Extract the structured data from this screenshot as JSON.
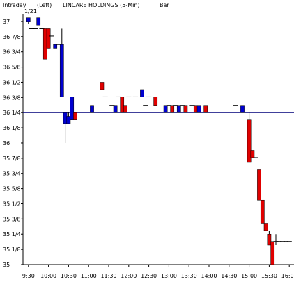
{
  "header": {
    "interval": "Intraday",
    "side": "(Left)",
    "title": "LINCARE HOLDINGS  (5-Min)",
    "style": "Bar",
    "date_label": "1/21"
  },
  "colors": {
    "up": "#e00000",
    "down": "#0000d0",
    "reference_line": "#00007a",
    "frame": "#000000",
    "background": "#ffffff"
  },
  "chart_data": {
    "type": "bar",
    "title": "LINCARE HOLDINGS  (5-Min)",
    "ylim": [
      35,
      37.0625
    ],
    "y_ticks": [
      {
        "value": 37,
        "label": "37"
      },
      {
        "value": 36.875,
        "label": "36 7/8"
      },
      {
        "value": 36.75,
        "label": "36 3/4"
      },
      {
        "value": 36.625,
        "label": "36 5/8"
      },
      {
        "value": 36.5,
        "label": "36 1/2"
      },
      {
        "value": 36.375,
        "label": "36 3/8"
      },
      {
        "value": 36.25,
        "label": "36 1/4"
      },
      {
        "value": 36.125,
        "label": "36 1/8"
      },
      {
        "value": 36,
        "label": "36"
      },
      {
        "value": 35.875,
        "label": "35 7/8"
      },
      {
        "value": 35.75,
        "label": "35 3/4"
      },
      {
        "value": 35.625,
        "label": "35 5/8"
      },
      {
        "value": 35.5,
        "label": "35 1/2"
      },
      {
        "value": 35.375,
        "label": "35 3/8"
      },
      {
        "value": 35.25,
        "label": "35 1/4"
      },
      {
        "value": 35.125,
        "label": "35 1/8"
      },
      {
        "value": 35,
        "label": "35"
      }
    ],
    "x_ticks": [
      {
        "t": 570,
        "label": "9:30"
      },
      {
        "t": 600,
        "label": "10:00"
      },
      {
        "t": 630,
        "label": "10:30"
      },
      {
        "t": 660,
        "label": "11:00"
      },
      {
        "t": 690,
        "label": "11:30"
      },
      {
        "t": 720,
        "label": "12:00"
      },
      {
        "t": 750,
        "label": "12:30"
      },
      {
        "t": 780,
        "label": "13:00"
      },
      {
        "t": 810,
        "label": "13:30"
      },
      {
        "t": 840,
        "label": "14:00"
      },
      {
        "t": 870,
        "label": "14:30"
      },
      {
        "t": 900,
        "label": "15:00"
      },
      {
        "t": 930,
        "label": "15:30"
      },
      {
        "t": 960,
        "label": "16:00"
      }
    ],
    "reference_line": 36.25,
    "bars": [
      {
        "t": 570,
        "open": 37.0,
        "high": 37.03,
        "low": 36.98,
        "close": 37.03
      },
      {
        "t": 575,
        "open": 36.94,
        "high": 36.94,
        "low": 36.94,
        "close": 36.94
      },
      {
        "t": 580,
        "open": 36.94,
        "high": 36.94,
        "low": 36.94,
        "close": 36.94
      },
      {
        "t": 585,
        "open": 36.97,
        "high": 37.03,
        "low": 36.97,
        "close": 37.03
      },
      {
        "t": 590,
        "open": 36.94,
        "high": 36.94,
        "low": 36.94,
        "close": 36.94
      },
      {
        "t": 595,
        "open": 36.94,
        "high": 36.94,
        "low": 36.69,
        "close": 36.69
      },
      {
        "t": 600,
        "open": 36.94,
        "high": 36.94,
        "low": 36.78,
        "close": 36.78
      },
      {
        "t": 605,
        "open": 36.88,
        "high": 36.88,
        "low": 36.88,
        "close": 36.88
      },
      {
        "t": 610,
        "open": 36.78,
        "high": 36.81,
        "low": 36.78,
        "close": 36.81
      },
      {
        "t": 615,
        "open": 36.81,
        "high": 36.81,
        "low": 36.81,
        "close": 36.81
      },
      {
        "t": 620,
        "open": 36.38,
        "high": 36.94,
        "low": 36.38,
        "close": 36.81
      },
      {
        "t": 625,
        "open": 36.16,
        "high": 36.25,
        "low": 36.0,
        "close": 36.25
      },
      {
        "t": 630,
        "open": 36.16,
        "high": 36.25,
        "low": 36.16,
        "close": 36.22
      },
      {
        "t": 635,
        "open": 36.19,
        "high": 36.38,
        "low": 36.19,
        "close": 36.38
      },
      {
        "t": 640,
        "open": 36.25,
        "high": 36.25,
        "low": 36.19,
        "close": 36.19
      },
      {
        "t": 665,
        "open": 36.25,
        "high": 36.31,
        "low": 36.25,
        "close": 36.31
      },
      {
        "t": 680,
        "open": 36.5,
        "high": 36.5,
        "low": 36.44,
        "close": 36.44
      },
      {
        "t": 685,
        "open": 36.38,
        "high": 36.38,
        "low": 36.38,
        "close": 36.38
      },
      {
        "t": 695,
        "open": 36.31,
        "high": 36.31,
        "low": 36.31,
        "close": 36.31
      },
      {
        "t": 700,
        "open": 36.25,
        "high": 36.31,
        "low": 36.25,
        "close": 36.31
      },
      {
        "t": 705,
        "open": 36.38,
        "high": 36.38,
        "low": 36.38,
        "close": 36.38
      },
      {
        "t": 710,
        "open": 36.38,
        "high": 36.38,
        "low": 36.25,
        "close": 36.25
      },
      {
        "t": 715,
        "open": 36.31,
        "high": 36.31,
        "low": 36.25,
        "close": 36.25
      },
      {
        "t": 720,
        "open": 36.38,
        "high": 36.38,
        "low": 36.38,
        "close": 36.38
      },
      {
        "t": 730,
        "open": 36.38,
        "high": 36.38,
        "low": 36.38,
        "close": 36.38
      },
      {
        "t": 740,
        "open": 36.38,
        "high": 36.44,
        "low": 36.38,
        "close": 36.44
      },
      {
        "t": 745,
        "open": 36.31,
        "high": 36.31,
        "low": 36.31,
        "close": 36.31
      },
      {
        "t": 750,
        "open": 36.38,
        "high": 36.38,
        "low": 36.38,
        "close": 36.38
      },
      {
        "t": 760,
        "open": 36.38,
        "high": 36.38,
        "low": 36.31,
        "close": 36.31
      },
      {
        "t": 775,
        "open": 36.25,
        "high": 36.31,
        "low": 36.25,
        "close": 36.31
      },
      {
        "t": 780,
        "open": 36.31,
        "high": 36.31,
        "low": 36.31,
        "close": 36.31
      },
      {
        "t": 785,
        "open": 36.31,
        "high": 36.31,
        "low": 36.25,
        "close": 36.25
      },
      {
        "t": 790,
        "open": 36.31,
        "high": 36.31,
        "low": 36.31,
        "close": 36.31
      },
      {
        "t": 795,
        "open": 36.25,
        "high": 36.31,
        "low": 36.25,
        "close": 36.31
      },
      {
        "t": 800,
        "open": 36.31,
        "high": 36.31,
        "low": 36.31,
        "close": 36.31
      },
      {
        "t": 805,
        "open": 36.31,
        "high": 36.31,
        "low": 36.25,
        "close": 36.25
      },
      {
        "t": 815,
        "open": 36.31,
        "high": 36.31,
        "low": 36.31,
        "close": 36.31
      },
      {
        "t": 820,
        "open": 36.31,
        "high": 36.31,
        "low": 36.25,
        "close": 36.25
      },
      {
        "t": 825,
        "open": 36.25,
        "high": 36.31,
        "low": 36.25,
        "close": 36.31
      },
      {
        "t": 835,
        "open": 36.31,
        "high": 36.31,
        "low": 36.25,
        "close": 36.25
      },
      {
        "t": 880,
        "open": 36.31,
        "high": 36.31,
        "low": 36.31,
        "close": 36.31
      },
      {
        "t": 890,
        "open": 36.25,
        "high": 36.31,
        "low": 36.25,
        "close": 36.31
      },
      {
        "t": 900,
        "open": 36.19,
        "high": 36.25,
        "low": 35.84,
        "close": 35.84
      },
      {
        "t": 905,
        "open": 35.94,
        "high": 35.94,
        "low": 35.88,
        "close": 35.88
      },
      {
        "t": 910,
        "open": 35.88,
        "high": 35.88,
        "low": 35.88,
        "close": 35.88
      },
      {
        "t": 915,
        "open": 35.78,
        "high": 35.78,
        "low": 35.53,
        "close": 35.53
      },
      {
        "t": 920,
        "open": 35.53,
        "high": 35.53,
        "low": 35.34,
        "close": 35.34
      },
      {
        "t": 925,
        "open": 35.34,
        "high": 35.34,
        "low": 35.28,
        "close": 35.28
      },
      {
        "t": 930,
        "open": 35.25,
        "high": 35.28,
        "low": 35.16,
        "close": 35.16
      },
      {
        "t": 935,
        "open": 35.19,
        "high": 35.19,
        "low": 35.0,
        "close": 35.0
      },
      {
        "t": 940,
        "open": 35.19,
        "high": 35.25,
        "low": 35.16,
        "close": 35.19
      },
      {
        "t": 945,
        "open": 35.19,
        "high": 35.19,
        "low": 35.19,
        "close": 35.19
      },
      {
        "t": 950,
        "open": 35.19,
        "high": 35.19,
        "low": 35.19,
        "close": 35.19
      },
      {
        "t": 955,
        "open": 35.19,
        "high": 35.19,
        "low": 35.19,
        "close": 35.19
      },
      {
        "t": 960,
        "open": 35.19,
        "high": 35.19,
        "low": 35.19,
        "close": 35.19
      }
    ]
  }
}
